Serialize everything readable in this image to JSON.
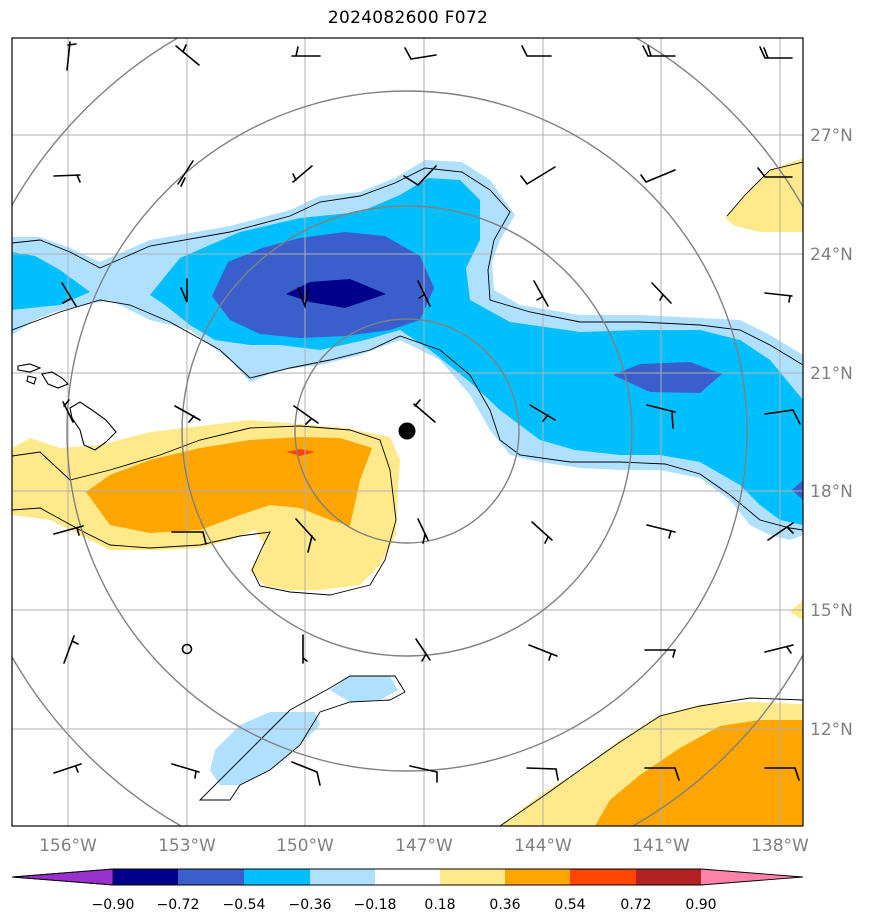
{
  "title": "2024082600 F072",
  "map": {
    "lon_range": [
      -157,
      -137.7
    ],
    "lat_range": [
      9.7,
      29.7
    ],
    "lon_ticks": [
      "156°W",
      "153°W",
      "150°W",
      "147°W",
      "144°W",
      "141°W",
      "138°W"
    ],
    "lat_ticks": [
      "27°N",
      "24°N",
      "21°N",
      "18°N",
      "15°N",
      "12°N"
    ],
    "gridlines": true,
    "storm_center_marker": {
      "lon": -147.4,
      "lat": 19.5
    },
    "small_circle_marker": {
      "lon": -153,
      "lat": 14.0
    },
    "range_rings_center": {
      "lon": -147.4,
      "lat": 19.5
    },
    "colors": {
      "frame": "#000000",
      "grid": "#b0b0b0",
      "ring": "#808080",
      "coast": "#000000"
    }
  },
  "colorbar": {
    "levels": [
      "−0.90",
      "−0.72",
      "−0.54",
      "−0.36",
      "−0.18",
      "0.18",
      "0.36",
      "0.54",
      "0.72",
      "0.90"
    ],
    "colors": [
      "#9932CC",
      "#00008B",
      "#3A5FCD",
      "#00BFFF",
      "#B0E0FF",
      "#FFFFFF",
      "#FFE98A",
      "#FFA500",
      "#FF4500",
      "#B22222",
      "#FF82AB"
    ]
  },
  "contours": {
    "strong_negative_color": "#3A5FCD",
    "very_strong_negative_color": "#00008B",
    "negative_color": "#00BFFF",
    "weak_negative_color": "#B0E0FF",
    "weak_positive_color": "#FFE98A",
    "positive_color": "#FFA500",
    "strong_positive_color": "#FF4500"
  }
}
